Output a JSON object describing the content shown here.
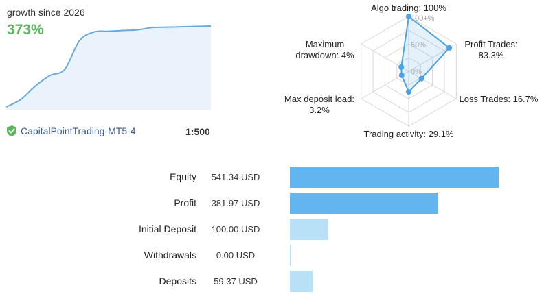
{
  "growth": {
    "label": "growth since 2026",
    "value": "373%",
    "curve_color": "#67a9df",
    "fill_color": "#eaf3fb"
  },
  "account": {
    "icon": "shield-check-icon",
    "icon_color": "#5cb85c",
    "name": "CapitalPointTrading-MT5-4",
    "leverage": "1:500"
  },
  "radar": {
    "labels": {
      "algo_trading": "Algo trading: 100%",
      "profit_trades": "Profit Trades:\n83.3%",
      "loss_trades": "Loss Trades: 16.7%",
      "trading_activity": "Trading activity: 29.1%",
      "max_deposit_load": "Max deposit load:\n3.2%",
      "maximum_drawdown": "Maximum\ndrawdown: 4%"
    },
    "scale_labels": [
      "100+%",
      "50%",
      "0%"
    ],
    "values": [
      100,
      83.3,
      16.7,
      29.1,
      3.2,
      4
    ],
    "color": "#4ba3e3"
  },
  "chart_data": [
    {
      "type": "line",
      "title": "growth since 2026",
      "values": [
        0,
        10,
        28,
        42,
        50,
        88,
        100,
        101,
        102,
        103,
        106,
        106.5,
        107,
        107.5,
        108
      ],
      "xlabel": "",
      "ylabel": ""
    },
    {
      "type": "radar",
      "categories": [
        "Algo trading",
        "Profit Trades",
        "Loss Trades",
        "Trading activity",
        "Max deposit load",
        "Maximum drawdown"
      ],
      "values": [
        100,
        83.3,
        16.7,
        29.1,
        3.2,
        4
      ],
      "scale_labels": [
        "100+%",
        "50%",
        "0%"
      ]
    },
    {
      "type": "bar",
      "categories": [
        "Equity",
        "Profit",
        "Initial Deposit",
        "Withdrawals",
        "Deposits"
      ],
      "values": [
        541.34,
        381.97,
        100.0,
        0.0,
        59.37
      ],
      "unit": "USD"
    }
  ],
  "stats": {
    "rows": [
      {
        "label": "Equity",
        "value": "541.34 USD",
        "amount": 541.34,
        "color": "#62b5ee"
      },
      {
        "label": "Profit",
        "value": "381.97 USD",
        "amount": 381.97,
        "color": "#62b5ee"
      },
      {
        "label": "Initial Deposit",
        "value": "100.00 USD",
        "amount": 100.0,
        "color": "#b8e0f7"
      },
      {
        "label": "Withdrawals",
        "value": "0.00 USD",
        "amount": 0.0,
        "color": "#b8e0f7"
      },
      {
        "label": "Deposits",
        "value": "59.37 USD",
        "amount": 59.37,
        "color": "#b8e0f7"
      }
    ]
  }
}
